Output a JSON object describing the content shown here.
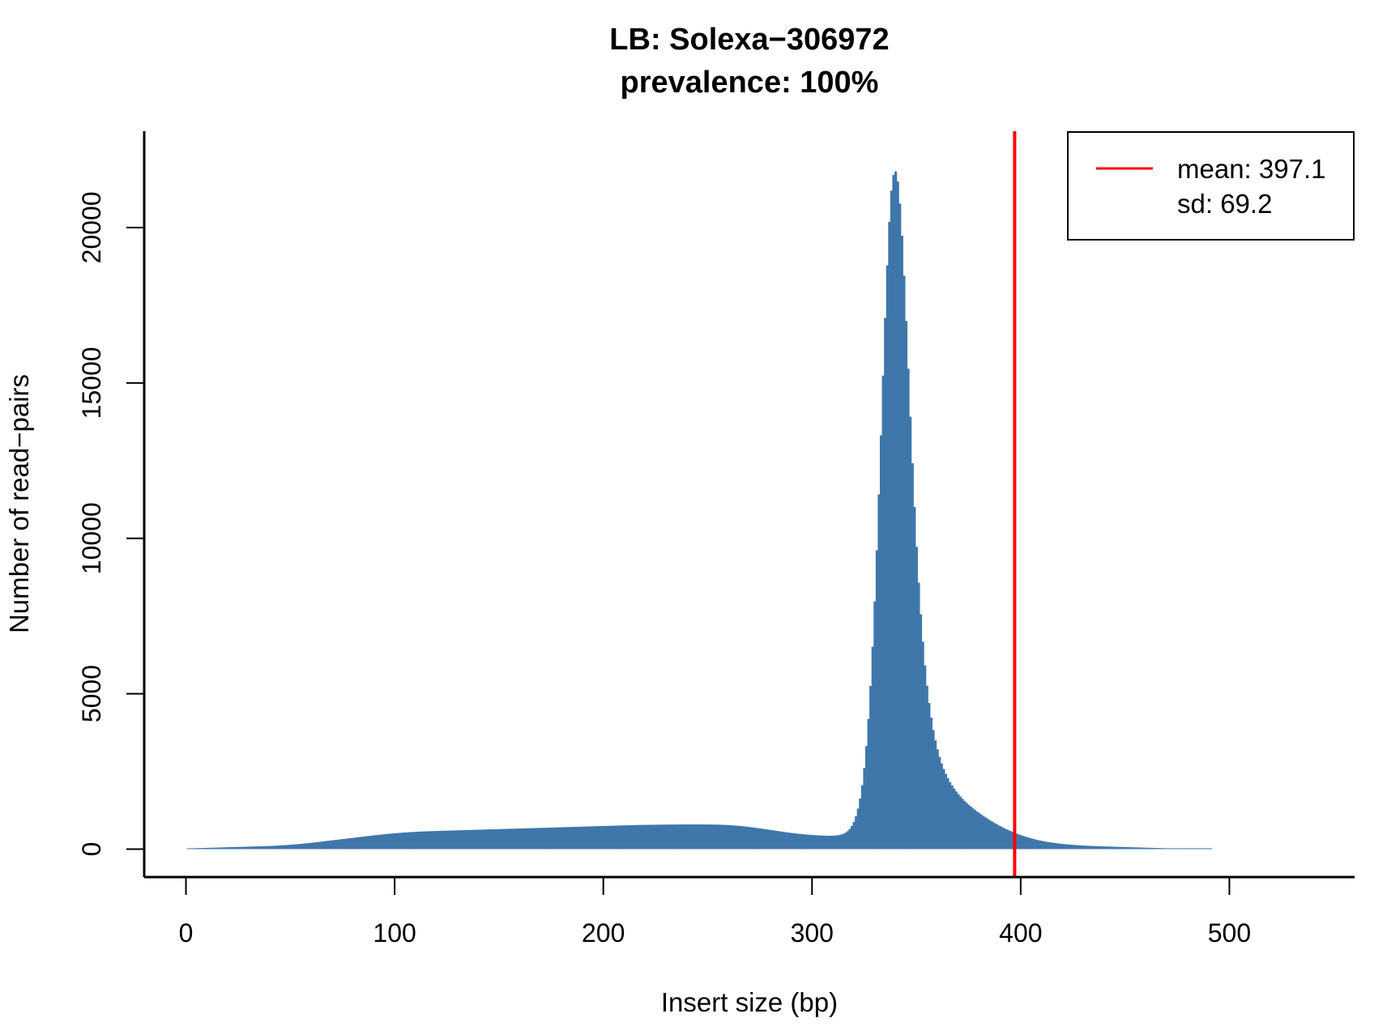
{
  "chart_data": {
    "type": "bar",
    "title": "LB: Solexa−306972",
    "subtitle": "prevalence: 100%",
    "xlabel": "Insert size (bp)",
    "ylabel": "Number of read−pairs",
    "xlim": [
      -20,
      560
    ],
    "ylim": [
      -900,
      23100
    ],
    "x_ticks": [
      0,
      100,
      200,
      300,
      400,
      500
    ],
    "y_ticks": [
      0,
      5000,
      10000,
      15000,
      20000
    ],
    "bin_width": 1,
    "bar_color": "#3f77aa",
    "grid": false,
    "legend_position": "top-right",
    "series": [
      {
        "name": "Number of read−pairs",
        "x_start": 1,
        "values": [
          20,
          22,
          25,
          28,
          30,
          32,
          34,
          36,
          38,
          40,
          42,
          44,
          46,
          48,
          50,
          52,
          54,
          56,
          58,
          60,
          62,
          64,
          66,
          68,
          70,
          72,
          74,
          76,
          78,
          80,
          82,
          84,
          86,
          88,
          90,
          92,
          94,
          96,
          98,
          100,
          103,
          106,
          110,
          114,
          118,
          122,
          126,
          130,
          135,
          140,
          145,
          150,
          156,
          162,
          168,
          175,
          182,
          189,
          196,
          203,
          210,
          218,
          226,
          234,
          242,
          250,
          258,
          266,
          274,
          282,
          290,
          298,
          306,
          314,
          322,
          330,
          338,
          346,
          354,
          362,
          370,
          378,
          386,
          394,
          402,
          410,
          418,
          426,
          434,
          442,
          450,
          457,
          464,
          471,
          478,
          485,
          491,
          497,
          503,
          509,
          515,
          520,
          525,
          530,
          535,
          540,
          544,
          548,
          552,
          556,
          560,
          563,
          566,
          569,
          572,
          575,
          577,
          579,
          581,
          583,
          585,
          587,
          589,
          591,
          593,
          595,
          597,
          599,
          601,
          603,
          605,
          607,
          609,
          611,
          613,
          615,
          617,
          619,
          621,
          623,
          625,
          627,
          629,
          631,
          633,
          635,
          637,
          639,
          641,
          643,
          645,
          647,
          649,
          651,
          653,
          655,
          657,
          659,
          661,
          663,
          665,
          667,
          669,
          671,
          673,
          675,
          677,
          679,
          681,
          683,
          685,
          687,
          689,
          691,
          693,
          695,
          697,
          699,
          701,
          703,
          705,
          707,
          709,
          711,
          713,
          715,
          717,
          719,
          721,
          723,
          725,
          727,
          729,
          731,
          733,
          735,
          737,
          739,
          741,
          743,
          745,
          747,
          749,
          751,
          753,
          755,
          757,
          759,
          761,
          763,
          765,
          767,
          769,
          771,
          773,
          775,
          776,
          777,
          778,
          779,
          780,
          781,
          782,
          783,
          784,
          785,
          786,
          787,
          788,
          789,
          790,
          790,
          791,
          791,
          792,
          792,
          793,
          793,
          794,
          794,
          794,
          794,
          794,
          794,
          794,
          794,
          793,
          793,
          792,
          792,
          791,
          790,
          789,
          788,
          786,
          784,
          782,
          779,
          776,
          772,
          768,
          763,
          758,
          752,
          746,
          740,
          733,
          726,
          718,
          710,
          702,
          693,
          684,
          675,
          666,
          656,
          646,
          636,
          626,
          616,
          606,
          596,
          586,
          576,
          566,
          556,
          547,
          538,
          529,
          520,
          512,
          504,
          496,
          489,
          482,
          476,
          470,
          464,
          459,
          454,
          450,
          446,
          442,
          439,
          436,
          434,
          432,
          430,
          430,
          432,
          436,
          443,
          454,
          470,
          494,
          528,
          577,
          646,
          742,
          875,
          1057,
          1302,
          1629,
          2058,
          2612,
          3315,
          4188,
          5249,
          6510,
          7970,
          9616,
          11414,
          13312,
          15235,
          17094,
          18781,
          20184,
          21188,
          21693,
          21800,
          21480,
          20773,
          19737,
          18448,
          16994,
          15457,
          13911,
          12415,
          11012,
          9727,
          8575,
          7557,
          6672,
          5908,
          5256,
          4700,
          4230,
          3832,
          3496,
          3211,
          2968,
          2759,
          2578,
          2420,
          2281,
          2157,
          2046,
          1946,
          1854,
          1770,
          1692,
          1619,
          1551,
          1487,
          1426,
          1368,
          1313,
          1260,
          1209,
          1160,
          1112,
          1066,
          1021,
          978,
          936,
          895,
          855,
          816,
          779,
          743,
          708,
          674,
          642,
          611,
          581,
          552,
          524,
          498,
          473,
          449,
          426,
          404,
          383,
          363,
          344,
          326,
          309,
          293,
          278,
          264,
          251,
          239,
          228,
          217,
          207,
          198,
          189,
          181,
          173,
          166,
          159,
          153,
          147,
          141,
          136,
          131,
          126,
          122,
          118,
          114,
          110,
          107,
          104,
          101,
          98,
          95,
          92,
          90,
          88,
          86,
          84,
          82,
          80,
          78,
          76,
          74,
          72,
          70,
          68,
          66,
          64,
          62,
          60,
          58,
          56,
          54,
          52,
          50,
          48,
          46,
          44,
          42,
          40,
          38,
          36,
          34,
          32,
          30,
          28,
          26,
          24,
          22,
          20,
          18,
          16,
          14,
          12,
          10,
          8,
          6,
          4,
          2,
          1,
          1,
          1,
          1,
          1,
          1,
          1,
          1,
          1
        ]
      }
    ],
    "mean_line": {
      "x": 397.1,
      "color": "#ff0000"
    },
    "legend": {
      "entries": [
        {
          "label": "mean: 397.1",
          "color": "#ff0000",
          "symbol": "line"
        },
        {
          "label": "sd: 69.2",
          "symbol": "none"
        }
      ]
    }
  }
}
